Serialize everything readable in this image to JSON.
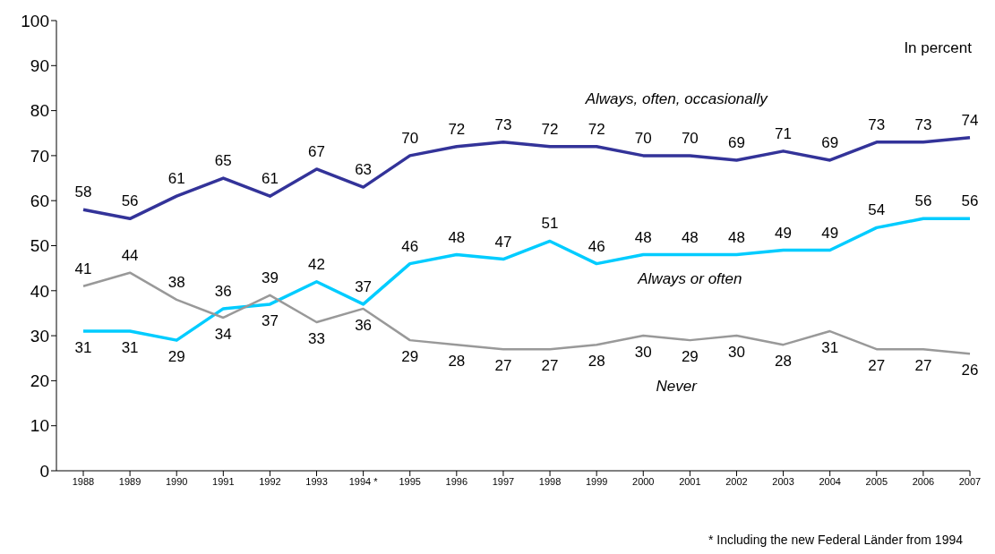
{
  "chart_data": {
    "type": "line",
    "categories": [
      "1988",
      "1989",
      "1990",
      "1991",
      "1992",
      "1993",
      "1994 *",
      "1995",
      "1996",
      "1997",
      "1998",
      "1999",
      "2000",
      "2001",
      "2002",
      "2003",
      "2004",
      "2005",
      "2006",
      "2007"
    ],
    "series": [
      {
        "name": "Always, often, occasionally",
        "color": "#333399",
        "values": [
          58,
          56,
          61,
          65,
          61,
          67,
          63,
          70,
          72,
          73,
          72,
          72,
          70,
          70,
          69,
          71,
          69,
          73,
          73,
          74
        ]
      },
      {
        "name": "Always or often",
        "color": "#00ccff",
        "values": [
          31,
          31,
          29,
          36,
          37,
          42,
          37,
          46,
          48,
          47,
          51,
          46,
          48,
          48,
          48,
          49,
          49,
          54,
          56,
          56
        ]
      },
      {
        "name": "Never",
        "color": "#999999",
        "values": [
          41,
          44,
          38,
          34,
          39,
          33,
          36,
          29,
          28,
          27,
          27,
          28,
          30,
          29,
          30,
          28,
          31,
          27,
          27,
          26
        ]
      }
    ],
    "ylim": [
      0,
      100
    ],
    "yticks": [
      0,
      10,
      20,
      30,
      40,
      50,
      60,
      70,
      80,
      90,
      100
    ],
    "grid": false,
    "legend": false,
    "data_labels": true,
    "marker": "none",
    "line_style": "solid",
    "annotations": [
      "In percent",
      "* Including the new Federal Länder from 1994"
    ]
  }
}
